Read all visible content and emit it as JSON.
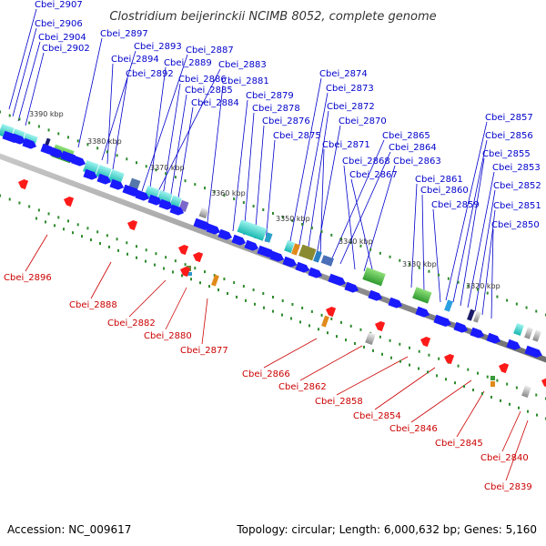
{
  "title": "Clostridium beijerinckii NCIMB 8052, complete genome",
  "footer": {
    "accession": "Accession: NC_009617",
    "topology": "Topology: circular; Length: 6,000,632 bp; Genes: 5,160"
  },
  "colors": {
    "forward_gene": "#1a1aff",
    "reverse_gene": "#ff1a1a",
    "label_forward": "#0000cc",
    "label_reverse": "#cc0000",
    "backbone": "#8c8c8c",
    "tick": "#2e8b2e"
  },
  "kbp_ticks": [
    "3390 kbp",
    "3380 kbp",
    "3370 kbp",
    "3360 kbp",
    "3350 kbp",
    "3340 kbp",
    "3330 kbp",
    "3320 kbp"
  ],
  "forward_labels": [
    "Cbei_2907",
    "Cbei_2906",
    "Cbei_2904",
    "Cbei_2902",
    "Cbei_2897",
    "Cbei_2893",
    "Cbei_2894",
    "Cbei_2892",
    "Cbei_2887",
    "Cbei_2889",
    "Cbei_2883",
    "Cbei_2886",
    "Cbei_2885",
    "Cbei_2884",
    "Cbei_2881",
    "Cbei_2879",
    "Cbei_2878",
    "Cbei_2876",
    "Cbei_2875",
    "Cbei_2874",
    "Cbei_2873",
    "Cbei_2872",
    "Cbei_2870",
    "Cbei_2871",
    "Cbei_2865",
    "Cbei_2864",
    "Cbei_2868",
    "Cbei_2863",
    "Cbei_2867",
    "Cbei_2861",
    "Cbei_2860",
    "Cbei_2859",
    "Cbei_2857",
    "Cbei_2856",
    "Cbei_2855",
    "Cbei_2853",
    "Cbei_2852",
    "Cbei_2851",
    "Cbei_2850"
  ],
  "reverse_labels": [
    "Cbei_2896",
    "Cbei_2888",
    "Cbei_2882",
    "Cbei_2880",
    "Cbei_2877",
    "Cbei_2866",
    "Cbei_2862",
    "Cbei_2858",
    "Cbei_2854",
    "Cbei_2846",
    "Cbei_2845",
    "Cbei_2840",
    "Cbei_2839"
  ]
}
